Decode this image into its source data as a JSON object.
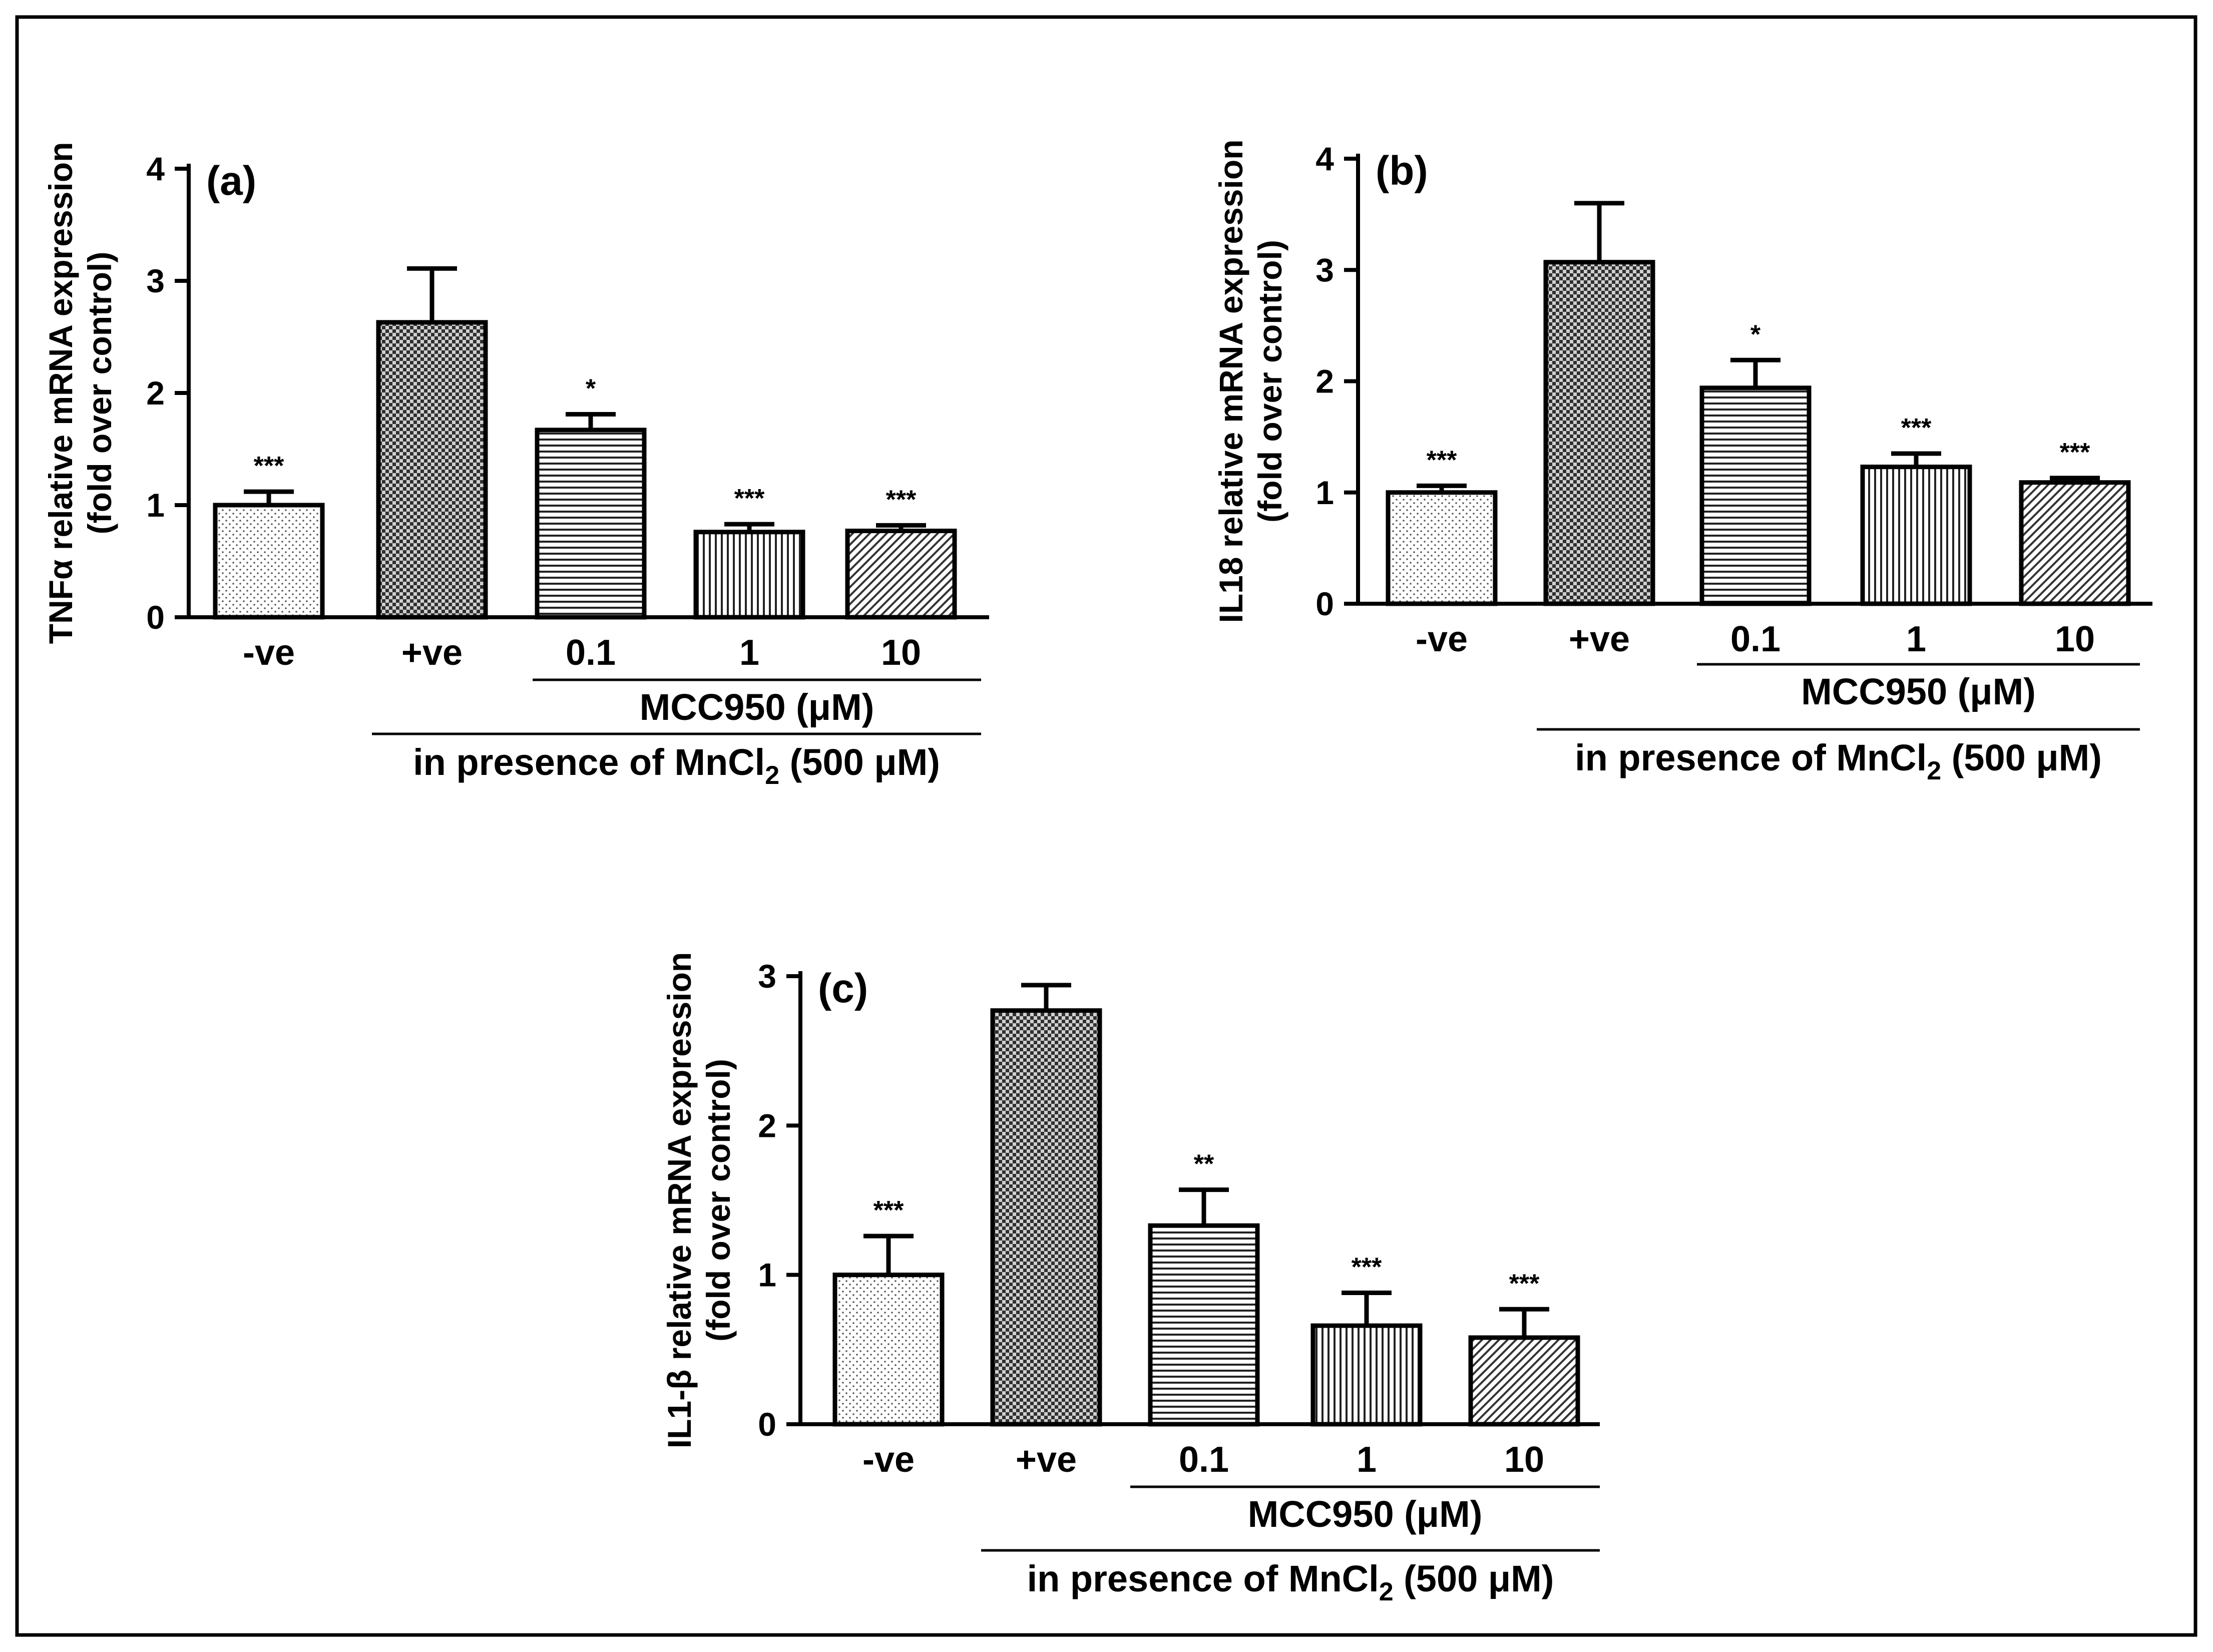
{
  "patterns": {
    "-ve": "dots",
    "+ve": "checker",
    "0.1": "hlines",
    "1": "vlines",
    "10": "diagonal"
  },
  "chart_data": [
    {
      "panel": "(a)",
      "type": "bar",
      "ylabel_line1": "TNFα relative mRNA expression",
      "ylabel_line2": "(fold over control)",
      "ylim": [
        0,
        4
      ],
      "yticks": [
        0,
        1,
        2,
        3,
        4
      ],
      "categories": [
        "-ve",
        "+ve",
        "0.1",
        "1",
        "10"
      ],
      "values": [
        1.0,
        2.63,
        1.67,
        0.76,
        0.77
      ],
      "errors": [
        0.12,
        0.48,
        0.14,
        0.07,
        0.05
      ],
      "significance": [
        "***",
        "",
        "*",
        "***",
        "***"
      ],
      "group_label_1": "MCC950 (μM)",
      "group_label_2_prefix": "in presence of MnCl",
      "group_label_2_sub": "2",
      "group_label_2_suffix": " (500 μM)"
    },
    {
      "panel": "(b)",
      "type": "bar",
      "ylabel_line1": "IL18 relative mRNA expression",
      "ylabel_line2": "(fold over control)",
      "ylim": [
        0,
        4
      ],
      "yticks": [
        0,
        1,
        2,
        3,
        4
      ],
      "categories": [
        "-ve",
        "+ve",
        "0.1",
        "1",
        "10"
      ],
      "values": [
        1.0,
        3.07,
        1.94,
        1.23,
        1.09
      ],
      "errors": [
        0.06,
        0.53,
        0.25,
        0.12,
        0.04
      ],
      "significance": [
        "***",
        "",
        "*",
        "***",
        "***"
      ],
      "group_label_1": "MCC950 (μM)",
      "group_label_2_prefix": "in presence of MnCl",
      "group_label_2_sub": "2",
      "group_label_2_suffix": " (500 μM)"
    },
    {
      "panel": "(c)",
      "type": "bar",
      "ylabel_line1": "IL1-β relative mRNA expression",
      "ylabel_line2": "(fold over control)",
      "ylim": [
        0,
        3
      ],
      "yticks": [
        0,
        1,
        2,
        3
      ],
      "categories": [
        "-ve",
        "+ve",
        "0.1",
        "1",
        "10"
      ],
      "values": [
        1.0,
        2.77,
        1.33,
        0.66,
        0.58
      ],
      "errors": [
        0.26,
        0.17,
        0.24,
        0.22,
        0.19
      ],
      "significance": [
        "***",
        "",
        "**",
        "***",
        "***"
      ],
      "group_label_1": "MCC950 (μM)",
      "group_label_2_prefix": "in presence of MnCl",
      "group_label_2_sub": "2",
      "group_label_2_suffix": " (500 μM)"
    }
  ]
}
